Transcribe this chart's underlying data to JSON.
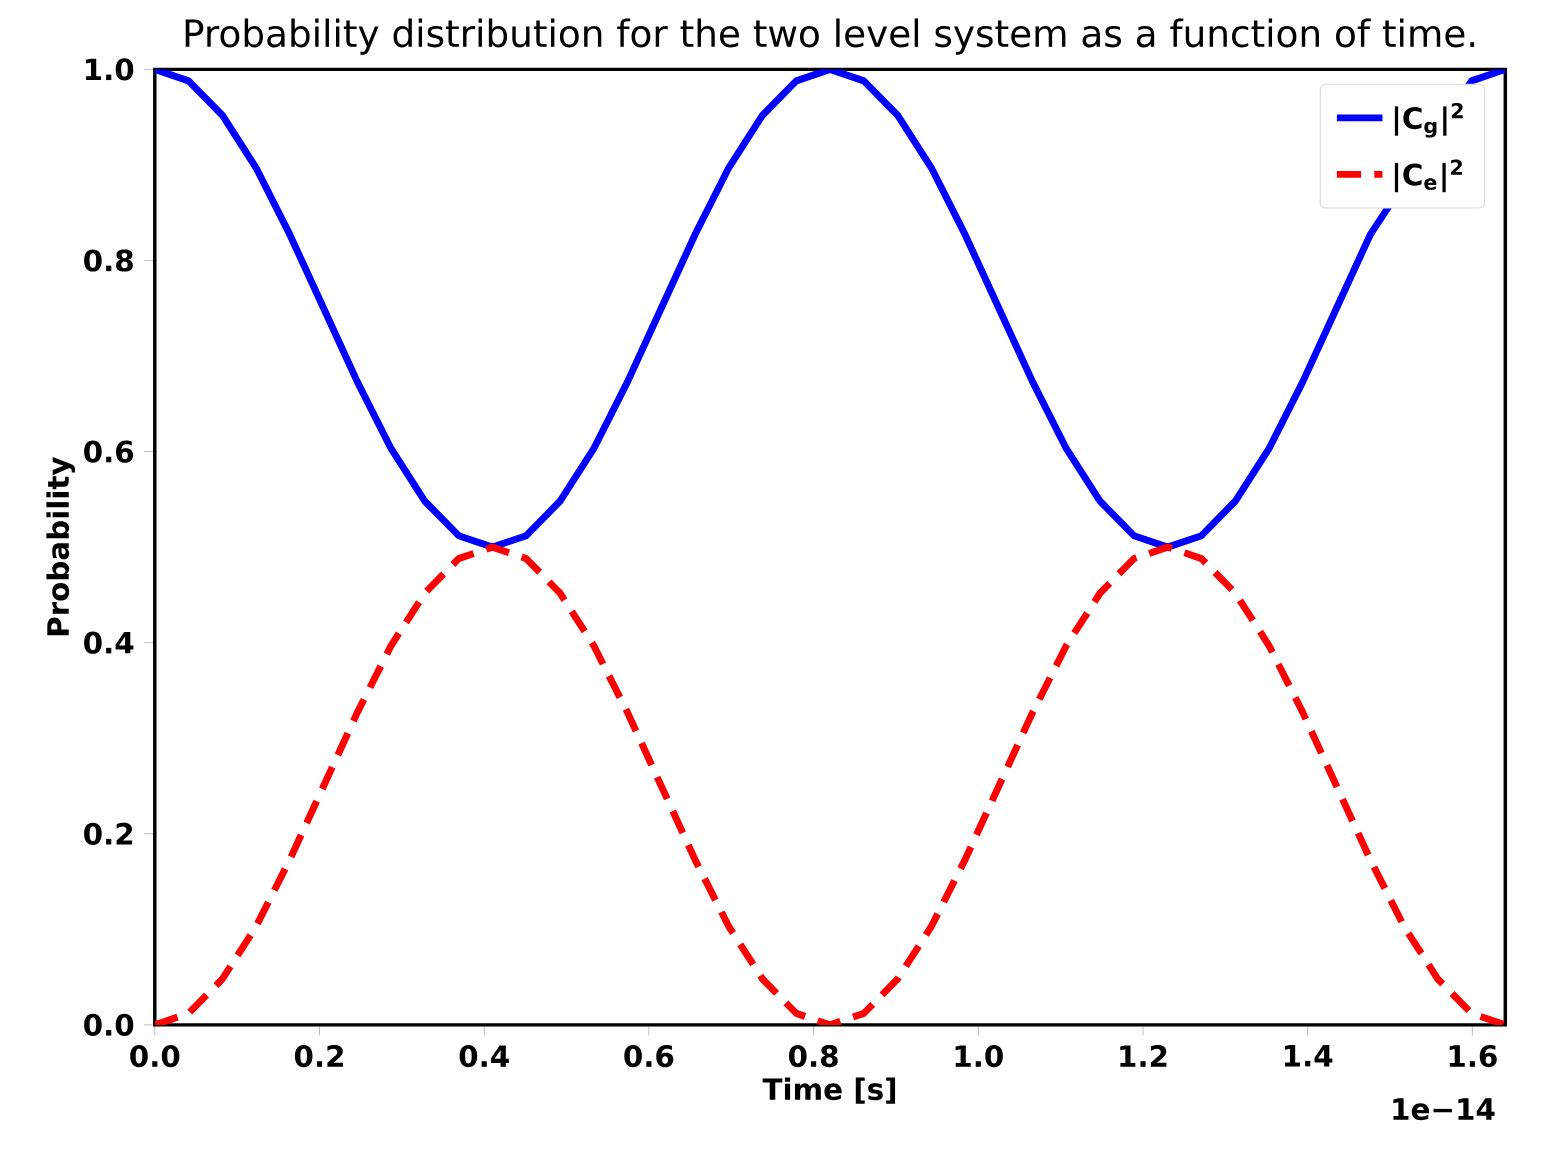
{
  "chart_data": {
    "type": "line",
    "title": "Probability distribution for the two level system as a function of time.",
    "xlabel": "Time [s]",
    "ylabel": "Probability",
    "annotations": [
      "1e−14"
    ],
    "x": [
      0,
      0.041,
      0.082,
      0.123,
      0.164,
      0.205,
      0.246,
      0.287,
      0.328,
      0.369,
      0.41,
      0.451,
      0.492,
      0.533,
      0.574,
      0.615,
      0.656,
      0.697,
      0.738,
      0.779,
      0.82,
      0.861,
      0.902,
      0.943,
      0.984,
      1.025,
      1.066,
      1.107,
      1.148,
      1.189,
      1.23,
      1.271,
      1.312,
      1.353,
      1.394,
      1.435,
      1.476,
      1.517,
      1.558,
      1.599,
      1.64
    ],
    "series": [
      {
        "name": "|C$_{g}$|$^{2}$",
        "color": "#0000ff",
        "line_style": "solid",
        "values": [
          1,
          0.988,
          0.952,
          0.897,
          0.827,
          0.75,
          0.673,
          0.603,
          0.548,
          0.512,
          0.5,
          0.512,
          0.548,
          0.603,
          0.673,
          0.75,
          0.827,
          0.897,
          0.952,
          0.988,
          1,
          0.988,
          0.952,
          0.897,
          0.827,
          0.75,
          0.673,
          0.603,
          0.548,
          0.512,
          0.5,
          0.512,
          0.548,
          0.603,
          0.673,
          0.75,
          0.827,
          null,
          null,
          0.988,
          1
        ]
      },
      {
        "name": "|C$_{e}$|$^{2}$",
        "color": "#ff0000",
        "line_style": "dashed",
        "values": [
          0,
          0.012,
          0.048,
          0.103,
          0.173,
          0.25,
          0.327,
          0.397,
          0.452,
          0.488,
          0.5,
          0.488,
          0.452,
          0.397,
          0.327,
          0.25,
          0.173,
          0.103,
          0.048,
          0.012,
          0,
          0.012,
          0.048,
          0.103,
          0.173,
          0.25,
          0.327,
          0.397,
          0.452,
          0.488,
          0.5,
          0.488,
          0.452,
          0.397,
          0.327,
          0.25,
          0.173,
          0.103,
          0.048,
          0.012,
          0
        ]
      }
    ],
    "xlim": [
      0,
      1.64
    ],
    "ylim": [
      0,
      1
    ],
    "xticks": [
      {
        "value": 0,
        "label": "0.0"
      },
      {
        "value": 0.2,
        "label": "0.2"
      },
      {
        "value": 0.4,
        "label": "0.4"
      },
      {
        "value": 0.6,
        "label": "0.6"
      },
      {
        "value": 0.8,
        "label": "0.8"
      },
      {
        "value": 1.0,
        "label": "1.0"
      },
      {
        "value": 1.2,
        "label": "1.2"
      },
      {
        "value": 1.4,
        "label": "1.4"
      },
      {
        "value": 1.6,
        "label": "1.6"
      }
    ],
    "yticks": [
      {
        "value": 0,
        "label": "0.0"
      },
      {
        "value": 0.2,
        "label": "0.2"
      },
      {
        "value": 0.4,
        "label": "0.4"
      },
      {
        "value": 0.6,
        "label": "0.6"
      },
      {
        "value": 0.8,
        "label": "0.8"
      },
      {
        "value": 1.0,
        "label": "1.0"
      }
    ],
    "grid": false,
    "legend": "top right",
    "marker": "none"
  }
}
